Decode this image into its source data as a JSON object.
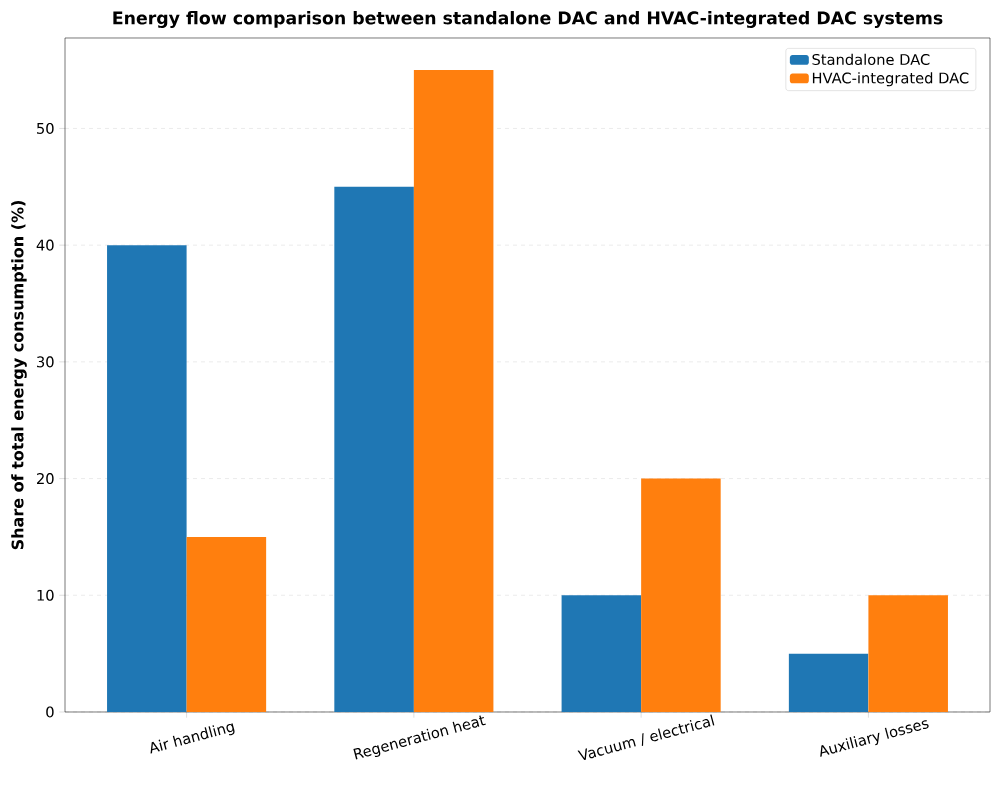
{
  "chart_data": {
    "type": "bar",
    "title": "Energy flow comparison between standalone DAC and HVAC-integrated DAC systems",
    "ylabel": "Share of total energy consumption (%)",
    "categories": [
      "Air handling",
      "Regeneration heat",
      "Vacuum / electrical",
      "Auxiliary losses"
    ],
    "series": [
      {
        "name": "Standalone DAC",
        "color": "#1f77b4",
        "values": [
          40,
          45,
          10,
          5
        ]
      },
      {
        "name": "HVAC-integrated DAC",
        "color": "#ff7f0e",
        "values": [
          15,
          55,
          20,
          10
        ]
      }
    ],
    "ylim": [
      0,
      57.75
    ],
    "yticks": [
      0,
      10,
      20,
      30,
      40,
      50
    ],
    "grid": "y",
    "legend": "top right"
  }
}
